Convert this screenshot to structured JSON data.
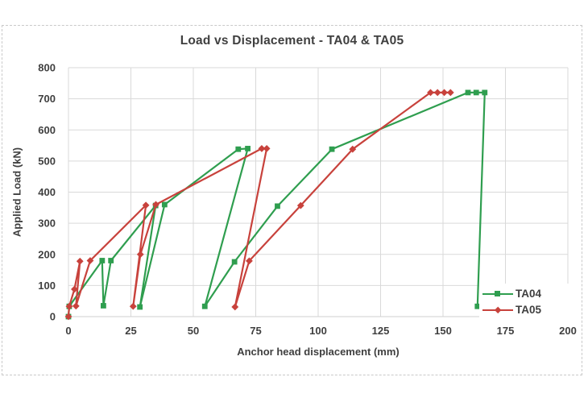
{
  "chart_data": {
    "type": "line",
    "title": "Load vs Displacement - TA04 & TA05",
    "xlabel": "Anchor head displacement (mm)",
    "ylabel": "Applied Load (kN)",
    "xlim": [
      0,
      200
    ],
    "ylim": [
      0,
      800
    ],
    "x_ticks": [
      0,
      25,
      50,
      75,
      100,
      125,
      150,
      175,
      200
    ],
    "y_ticks": [
      0,
      100,
      200,
      300,
      400,
      500,
      600,
      700,
      800
    ],
    "grid": true,
    "legend_position": "inside-right-bottom",
    "series": [
      {
        "name": "TA04",
        "color": "#2f9e4f",
        "marker": "square",
        "points": [
          [
            0,
            0
          ],
          [
            0.3,
            33
          ],
          [
            13.5,
            180
          ],
          [
            14,
            35
          ],
          [
            17,
            180
          ],
          [
            34.9,
            357
          ],
          [
            28.6,
            31
          ],
          [
            38.5,
            360
          ],
          [
            68,
            538
          ],
          [
            71.8,
            540
          ],
          [
            54.6,
            33
          ],
          [
            66.5,
            176
          ],
          [
            83.7,
            355
          ],
          [
            105.5,
            538
          ],
          [
            160,
            720
          ],
          [
            163.3,
            720
          ],
          [
            166.7,
            720
          ],
          [
            163.8,
            33
          ]
        ]
      },
      {
        "name": "TA05",
        "color": "#c8423c",
        "marker": "diamond",
        "points": [
          [
            0,
            0
          ],
          [
            0.3,
            33
          ],
          [
            2.4,
            88
          ],
          [
            4.6,
            178
          ],
          [
            3,
            34
          ],
          [
            8.7,
            180
          ],
          [
            31,
            358
          ],
          [
            25.9,
            33
          ],
          [
            28.8,
            200
          ],
          [
            35,
            360
          ],
          [
            77.4,
            540
          ],
          [
            79.4,
            540
          ],
          [
            66.7,
            31
          ],
          [
            72.4,
            179
          ],
          [
            93,
            357
          ],
          [
            113.8,
            538
          ],
          [
            145,
            720
          ],
          [
            147.8,
            720
          ],
          [
            150.5,
            720
          ],
          [
            153,
            720
          ]
        ]
      }
    ]
  },
  "colors": {
    "grid": "#d9d9d9",
    "axis": "#cfcfcf",
    "text": "#3f3f3f",
    "chart_border": "#c9c9c9",
    "background": "#ffffff",
    "ta04": "#2f9e4f",
    "ta05": "#c8423c"
  }
}
